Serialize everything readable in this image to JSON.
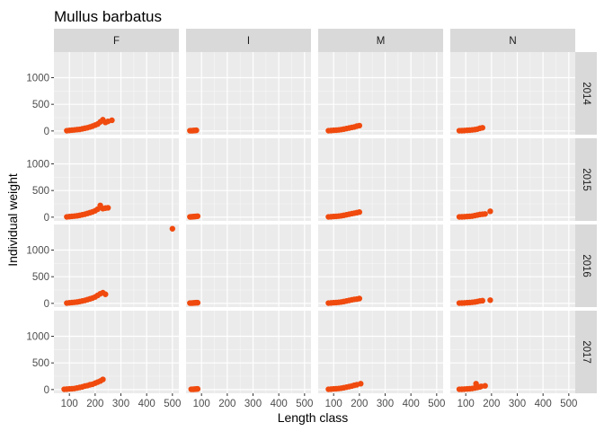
{
  "chart_data": {
    "type": "scatter",
    "title": "Mullus barbatus",
    "xlabel": "Length class",
    "ylabel": "Individual weight",
    "facet_columns": [
      "F",
      "I",
      "M",
      "N"
    ],
    "facet_rows": [
      "2014",
      "2015",
      "2016",
      "2017"
    ],
    "xlim": [
      40,
      525
    ],
    "ylim": [
      -70,
      1480
    ],
    "x_ticks": [
      100,
      200,
      300,
      400,
      500
    ],
    "y_ticks": [
      0,
      500,
      1000
    ],
    "point_color": "#f04a0e",
    "panel_background": "#ebebeb",
    "grid": true,
    "strip_background": "#d9d9d9",
    "panels": [
      {
        "row": "2014",
        "column": "F",
        "points": [
          [
            90,
            5
          ],
          [
            100,
            10
          ],
          [
            110,
            15
          ],
          [
            120,
            20
          ],
          [
            130,
            25
          ],
          [
            140,
            30
          ],
          [
            150,
            40
          ],
          [
            160,
            50
          ],
          [
            170,
            60
          ],
          [
            180,
            75
          ],
          [
            190,
            90
          ],
          [
            200,
            110
          ],
          [
            210,
            130
          ],
          [
            220,
            170
          ],
          [
            230,
            210
          ],
          [
            240,
            160
          ],
          [
            250,
            180
          ],
          [
            265,
            200
          ]
        ]
      },
      {
        "row": "2014",
        "column": "I",
        "points": [
          [
            55,
            5
          ],
          [
            60,
            5
          ],
          [
            65,
            6
          ],
          [
            70,
            8
          ],
          [
            75,
            10
          ],
          [
            80,
            12
          ]
        ]
      },
      {
        "row": "2014",
        "column": "M",
        "points": [
          [
            80,
            5
          ],
          [
            90,
            8
          ],
          [
            100,
            12
          ],
          [
            110,
            15
          ],
          [
            120,
            20
          ],
          [
            130,
            25
          ],
          [
            140,
            35
          ],
          [
            150,
            45
          ],
          [
            160,
            55
          ],
          [
            170,
            65
          ],
          [
            180,
            75
          ],
          [
            190,
            90
          ],
          [
            200,
            100
          ]
        ]
      },
      {
        "row": "2014",
        "column": "N",
        "points": [
          [
            75,
            5
          ],
          [
            85,
            6
          ],
          [
            95,
            8
          ],
          [
            105,
            12
          ],
          [
            115,
            15
          ],
          [
            125,
            20
          ],
          [
            135,
            25
          ],
          [
            145,
            35
          ],
          [
            155,
            50
          ],
          [
            165,
            60
          ]
        ]
      },
      {
        "row": "2015",
        "column": "F",
        "points": [
          [
            90,
            5
          ],
          [
            100,
            10
          ],
          [
            110,
            15
          ],
          [
            120,
            20
          ],
          [
            130,
            25
          ],
          [
            140,
            35
          ],
          [
            150,
            45
          ],
          [
            160,
            55
          ],
          [
            170,
            70
          ],
          [
            180,
            85
          ],
          [
            190,
            100
          ],
          [
            200,
            120
          ],
          [
            210,
            150
          ],
          [
            220,
            220
          ],
          [
            230,
            160
          ],
          [
            240,
            170
          ],
          [
            250,
            175
          ]
        ]
      },
      {
        "row": "2015",
        "column": "I",
        "points": [
          [
            55,
            5
          ],
          [
            60,
            6
          ],
          [
            65,
            8
          ],
          [
            70,
            10
          ],
          [
            75,
            12
          ],
          [
            80,
            15
          ],
          [
            85,
            18
          ]
        ]
      },
      {
        "row": "2015",
        "column": "M",
        "points": [
          [
            80,
            5
          ],
          [
            90,
            8
          ],
          [
            100,
            12
          ],
          [
            110,
            15
          ],
          [
            120,
            20
          ],
          [
            130,
            25
          ],
          [
            140,
            35
          ],
          [
            150,
            45
          ],
          [
            160,
            55
          ],
          [
            170,
            65
          ],
          [
            180,
            75
          ],
          [
            190,
            85
          ],
          [
            200,
            95
          ]
        ]
      },
      {
        "row": "2015",
        "column": "N",
        "points": [
          [
            75,
            5
          ],
          [
            85,
            6
          ],
          [
            95,
            8
          ],
          [
            105,
            12
          ],
          [
            115,
            15
          ],
          [
            125,
            20
          ],
          [
            135,
            30
          ],
          [
            145,
            40
          ],
          [
            155,
            50
          ],
          [
            165,
            55
          ],
          [
            175,
            60
          ],
          [
            195,
            110
          ]
        ]
      },
      {
        "row": "2016",
        "column": "F",
        "points": [
          [
            90,
            5
          ],
          [
            100,
            10
          ],
          [
            110,
            15
          ],
          [
            120,
            20
          ],
          [
            130,
            25
          ],
          [
            140,
            35
          ],
          [
            150,
            45
          ],
          [
            160,
            55
          ],
          [
            170,
            70
          ],
          [
            180,
            85
          ],
          [
            190,
            100
          ],
          [
            200,
            120
          ],
          [
            210,
            150
          ],
          [
            220,
            180
          ],
          [
            230,
            200
          ],
          [
            240,
            170
          ],
          [
            500,
            1400
          ]
        ]
      },
      {
        "row": "2016",
        "column": "I",
        "points": [
          [
            55,
            5
          ],
          [
            60,
            5
          ],
          [
            65,
            6
          ],
          [
            70,
            8
          ],
          [
            75,
            10
          ],
          [
            80,
            12
          ],
          [
            85,
            12
          ]
        ]
      },
      {
        "row": "2016",
        "column": "M",
        "points": [
          [
            80,
            5
          ],
          [
            90,
            8
          ],
          [
            100,
            12
          ],
          [
            110,
            15
          ],
          [
            120,
            20
          ],
          [
            130,
            25
          ],
          [
            140,
            35
          ],
          [
            150,
            45
          ],
          [
            160,
            55
          ],
          [
            170,
            65
          ],
          [
            180,
            75
          ],
          [
            190,
            80
          ],
          [
            200,
            90
          ]
        ]
      },
      {
        "row": "2016",
        "column": "N",
        "points": [
          [
            75,
            5
          ],
          [
            85,
            6
          ],
          [
            95,
            8
          ],
          [
            105,
            12
          ],
          [
            115,
            15
          ],
          [
            125,
            20
          ],
          [
            135,
            25
          ],
          [
            145,
            35
          ],
          [
            155,
            45
          ],
          [
            165,
            50
          ],
          [
            195,
            60
          ]
        ]
      },
      {
        "row": "2017",
        "column": "F",
        "points": [
          [
            80,
            5
          ],
          [
            90,
            8
          ],
          [
            100,
            12
          ],
          [
            110,
            15
          ],
          [
            120,
            20
          ],
          [
            130,
            30
          ],
          [
            140,
            40
          ],
          [
            150,
            50
          ],
          [
            160,
            65
          ],
          [
            170,
            75
          ],
          [
            180,
            90
          ],
          [
            190,
            100
          ],
          [
            200,
            120
          ],
          [
            210,
            140
          ],
          [
            220,
            160
          ],
          [
            230,
            190
          ]
        ]
      },
      {
        "row": "2017",
        "column": "I",
        "points": [
          [
            60,
            5
          ],
          [
            65,
            5
          ],
          [
            70,
            6
          ],
          [
            75,
            8
          ],
          [
            80,
            10
          ],
          [
            85,
            12
          ]
        ]
      },
      {
        "row": "2017",
        "column": "M",
        "points": [
          [
            80,
            5
          ],
          [
            90,
            8
          ],
          [
            100,
            12
          ],
          [
            110,
            15
          ],
          [
            120,
            20
          ],
          [
            130,
            25
          ],
          [
            140,
            35
          ],
          [
            150,
            45
          ],
          [
            160,
            55
          ],
          [
            170,
            65
          ],
          [
            180,
            80
          ],
          [
            190,
            90
          ],
          [
            205,
            110
          ]
        ]
      },
      {
        "row": "2017",
        "column": "N",
        "points": [
          [
            75,
            5
          ],
          [
            85,
            6
          ],
          [
            95,
            8
          ],
          [
            105,
            12
          ],
          [
            115,
            15
          ],
          [
            125,
            20
          ],
          [
            135,
            30
          ],
          [
            145,
            40
          ],
          [
            155,
            50
          ],
          [
            160,
            60
          ],
          [
            175,
            70
          ],
          [
            140,
            110
          ]
        ]
      }
    ]
  }
}
